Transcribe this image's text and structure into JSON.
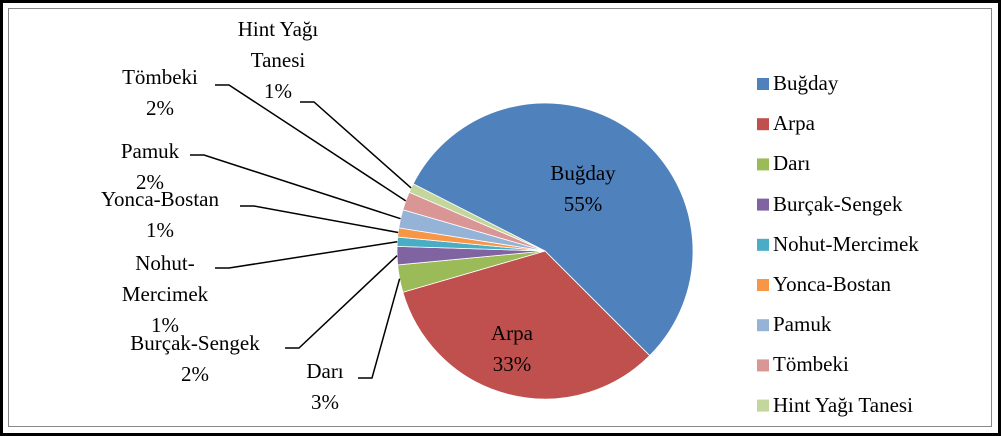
{
  "chart_data": {
    "type": "pie",
    "categories": [
      "Buğday",
      "Arpa",
      "Darı",
      "Burçak-Sengek",
      "Nohut-Mercimek",
      "Yonca-Bostan",
      "Pamuk",
      "Tömbeki",
      "Hint Yağı Tanesi"
    ],
    "values": [
      55,
      33,
      3,
      2,
      1,
      1,
      2,
      2,
      1
    ],
    "value_labels": [
      "55%",
      "33%",
      "3%",
      "2%",
      "1%",
      "1%",
      "2%",
      "2%",
      "1%"
    ],
    "colors": [
      "#4f81bd",
      "#c0504d",
      "#9bbb59",
      "#8064a2",
      "#4bacc6",
      "#f79646",
      "#95b3d7",
      "#d99694",
      "#c3d69b"
    ],
    "legend": "right"
  }
}
